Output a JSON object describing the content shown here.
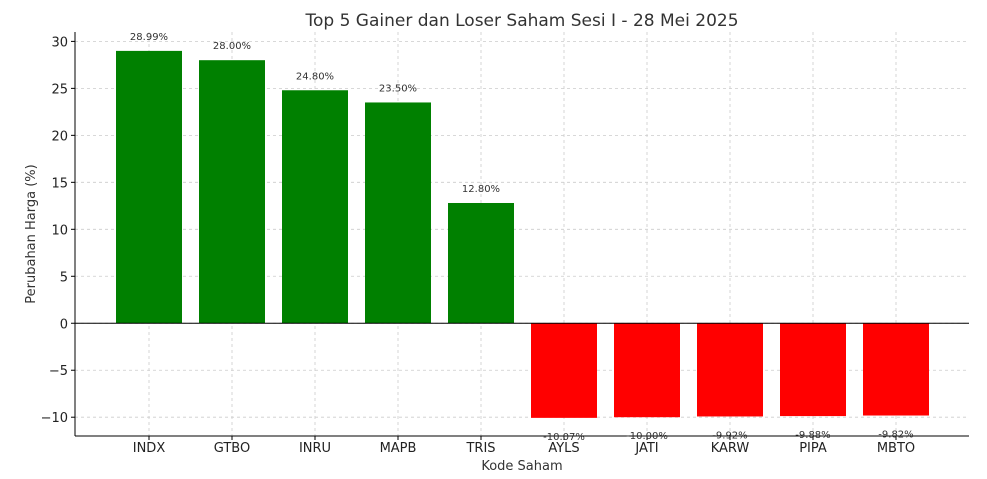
{
  "chart_data": {
    "type": "bar",
    "title": "Top 5 Gainer dan Loser Saham Sesi I - 28 Mei 2025",
    "xlabel": "Kode Saham",
    "ylabel": "Perubahan Harga (%)",
    "categories": [
      "INDX",
      "GTBO",
      "INRU",
      "MAPB",
      "TRIS",
      "AYLS",
      "JATI",
      "KARW",
      "PIPA",
      "MBTO"
    ],
    "values": [
      28.99,
      28.0,
      24.8,
      23.5,
      12.8,
      -10.07,
      -10.0,
      -9.92,
      -9.88,
      -9.82
    ],
    "data_labels": [
      "28.99%",
      "28.00%",
      "24.80%",
      "23.50%",
      "12.80%",
      "-10.07%",
      "-10.00%",
      "-9.92%",
      "-9.88%",
      "-9.82%"
    ],
    "ylim": [
      -12,
      31
    ],
    "yticks": [
      -10,
      -5,
      0,
      5,
      10,
      15,
      20,
      25,
      30
    ],
    "ytick_labels": [
      "−10",
      "−5",
      "0",
      "5",
      "10",
      "15",
      "20",
      "25",
      "30"
    ],
    "grid": true,
    "colors": {
      "gainer": "#008000",
      "loser": "#ff0000"
    }
  }
}
